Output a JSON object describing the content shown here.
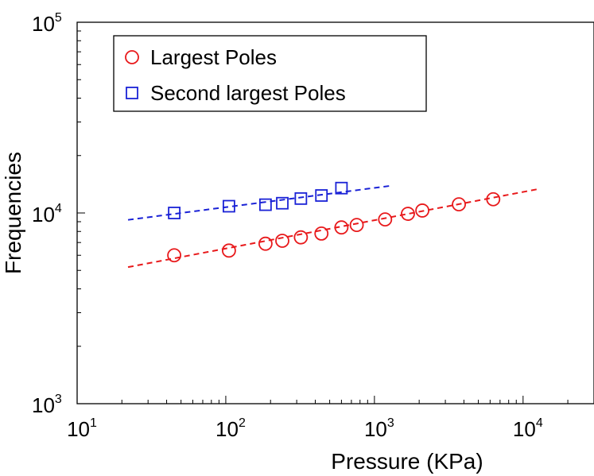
{
  "chart_data": {
    "type": "scatter",
    "xlabel": "Pressure (KPa)",
    "ylabel": "Frequencies",
    "xscale": "log",
    "yscale": "log",
    "xlim": [
      10,
      30000
    ],
    "ylim": [
      1000,
      100000
    ],
    "x_ticks": [
      {
        "value": 10,
        "base": "10",
        "exp": "1"
      },
      {
        "value": 100,
        "base": "10",
        "exp": "2"
      },
      {
        "value": 1000,
        "base": "10",
        "exp": "3"
      },
      {
        "value": 10000,
        "base": "10",
        "exp": "4"
      }
    ],
    "y_ticks": [
      {
        "value": 1000,
        "base": "10",
        "exp": "3"
      },
      {
        "value": 10000,
        "base": "10",
        "exp": "4"
      },
      {
        "value": 100000,
        "base": "10",
        "exp": "5"
      }
    ],
    "grid": false,
    "legend_position": "top-left",
    "series": [
      {
        "name": "Largest Poles",
        "marker": "circle",
        "color": "#e8191b",
        "x": [
          45,
          105,
          185,
          240,
          320,
          440,
          600,
          760,
          1180,
          1680,
          2100,
          3700,
          6300
        ],
        "y": [
          6000,
          6350,
          6900,
          7150,
          7450,
          7800,
          8400,
          8650,
          9250,
          9900,
          10300,
          11100,
          11800
        ],
        "fit": {
          "x": [
            22,
            13000
          ],
          "y": [
            5200,
            13400
          ],
          "style": "dashed"
        }
      },
      {
        "name": "Second largest Poles",
        "marker": "square",
        "color": "#1a22d6",
        "x": [
          45,
          105,
          185,
          240,
          320,
          440,
          600
        ],
        "y": [
          10000,
          10850,
          11050,
          11250,
          11900,
          12350,
          13500
        ],
        "fit": {
          "x": [
            22,
            1300
          ],
          "y": [
            9200,
            13900
          ],
          "style": "dashed"
        }
      }
    ]
  }
}
